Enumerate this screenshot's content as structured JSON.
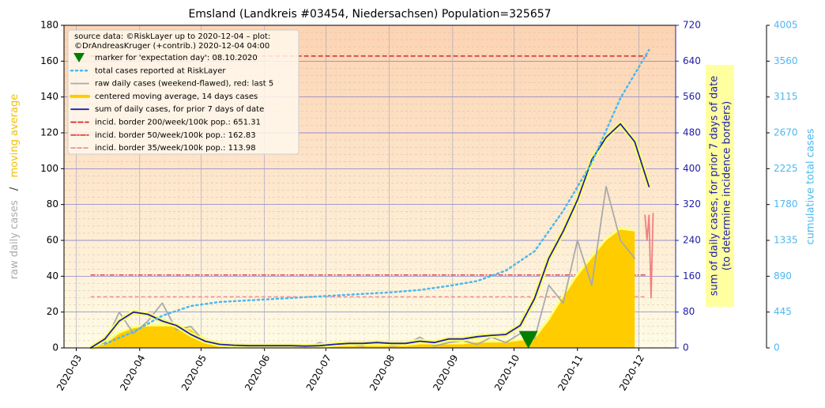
{
  "chart_data": {
    "type": "line",
    "title": "Emsland (Landkreis #03454, Niedersachsen) Population=325657",
    "legend_title": [
      "source data: ©RiskLayer up to 2020-12-04 – plot:",
      "©DrAndreasKruger (+contrib.) 2020-12-04 04:00"
    ],
    "ylabel": [
      "raw daily cases",
      "/",
      "moving average"
    ],
    "y2label": [
      "sum of daily cases, for prior 7 days of date",
      "(to determine incidence borders)"
    ],
    "y3label": "cumulative total cases",
    "xlim": [
      -6,
      293
    ],
    "xticks": [
      {
        "value": 0,
        "label": "2020-03"
      },
      {
        "value": 31,
        "label": "2020-04"
      },
      {
        "value": 61,
        "label": "2020-05"
      },
      {
        "value": 92,
        "label": "2020-06"
      },
      {
        "value": 122,
        "label": "2020-07"
      },
      {
        "value": 153,
        "label": "2020-08"
      },
      {
        "value": 184,
        "label": "2020-09"
      },
      {
        "value": 214,
        "label": "2020-10"
      },
      {
        "value": 245,
        "label": "2020-11"
      },
      {
        "value": 275,
        "label": "2020-12"
      }
    ],
    "ylim": [
      0,
      180
    ],
    "yticks": [
      0,
      20,
      40,
      60,
      80,
      100,
      120,
      140,
      160,
      180
    ],
    "y2lim": [
      0,
      720
    ],
    "y2ticks": [
      0,
      80,
      160,
      240,
      320,
      400,
      480,
      560,
      640,
      720
    ],
    "y3lim": [
      0,
      4005
    ],
    "y3ticks": [
      0,
      445,
      890,
      1335,
      1780,
      2225,
      2670,
      3115,
      3560,
      4005
    ],
    "grid": true,
    "marker": {
      "label": "marker for 'expectation day': 08.10.2020",
      "color": "#008000",
      "x": 221,
      "y": 5
    },
    "series": [
      {
        "name": "total cases reported at RiskLayer",
        "color": "#4db8f0",
        "style": "dotted",
        "axis": "y3",
        "x": [
          14,
          28,
          42,
          56,
          70,
          84,
          98,
          112,
          126,
          140,
          154,
          168,
          182,
          196,
          210,
          224,
          238,
          252,
          266,
          280
        ],
        "values": [
          50,
          200,
          400,
          520,
          570,
          590,
          610,
          630,
          650,
          670,
          690,
          720,
          770,
          830,
          960,
          1200,
          1700,
          2300,
          3100,
          3700
        ]
      },
      {
        "name": "raw daily cases (weekend-flawed), red: last 5",
        "color": "#aaaaaa",
        "style": "solid",
        "axis": "y",
        "x": [
          7,
          14,
          21,
          28,
          35,
          42,
          49,
          56,
          63,
          70,
          77,
          84,
          91,
          98,
          105,
          112,
          119,
          126,
          133,
          140,
          147,
          154,
          161,
          168,
          175,
          182,
          189,
          196,
          203,
          210,
          217,
          224,
          231,
          238,
          245,
          252,
          259,
          266,
          273
        ],
        "values": [
          0,
          3,
          20,
          8,
          15,
          25,
          10,
          12,
          3,
          2,
          1,
          2,
          0,
          1,
          1,
          0,
          3,
          1,
          2,
          1,
          4,
          1,
          2,
          6,
          1,
          3,
          4,
          2,
          6,
          3,
          8,
          5,
          35,
          25,
          60,
          35,
          90,
          60,
          50
        ]
      },
      {
        "color": "#f08080",
        "style": "solid",
        "axis": "y",
        "x": [
          278,
          279,
          280,
          281,
          282
        ],
        "values": [
          74,
          60,
          74,
          28,
          75
        ]
      },
      {
        "name": "centered moving average, 14 days cases",
        "color": "#ffcc00",
        "style": "area",
        "axis": "y",
        "x": [
          7,
          14,
          21,
          28,
          35,
          42,
          49,
          56,
          63,
          70,
          77,
          84,
          91,
          98,
          105,
          112,
          119,
          126,
          133,
          140,
          147,
          154,
          161,
          168,
          175,
          182,
          189,
          196,
          203,
          210,
          217,
          224,
          231,
          238,
          245,
          252,
          259,
          266,
          273
        ],
        "values": [
          0,
          2,
          8,
          11,
          12,
          12,
          12,
          10,
          4,
          2,
          1,
          1,
          1,
          1,
          1,
          1,
          1,
          1,
          1,
          1,
          1,
          1,
          1,
          2,
          2,
          2,
          2,
          3,
          3,
          3,
          4,
          5,
          15,
          28,
          40,
          50,
          60,
          66,
          65
        ]
      },
      {
        "name": "sum of daily cases, for prior 7 days of date",
        "color": "#2020a8",
        "style": "solid",
        "axis": "y2",
        "x": [
          7,
          14,
          21,
          28,
          35,
          42,
          49,
          56,
          63,
          70,
          77,
          84,
          91,
          98,
          105,
          112,
          119,
          126,
          133,
          140,
          147,
          154,
          161,
          168,
          175,
          182,
          189,
          196,
          203,
          210,
          217,
          224,
          231,
          238,
          245,
          252,
          259,
          266,
          273,
          280
        ],
        "values": [
          0,
          20,
          60,
          80,
          75,
          60,
          50,
          30,
          15,
          8,
          6,
          5,
          5,
          5,
          5,
          4,
          5,
          8,
          10,
          10,
          12,
          10,
          10,
          15,
          12,
          20,
          20,
          25,
          28,
          30,
          50,
          110,
          200,
          260,
          330,
          420,
          470,
          500,
          460,
          360
        ]
      }
    ],
    "borders_x": [
      7,
      279
    ],
    "borders": [
      {
        "name": "incid. border 200/week/100k pop.: 651.31",
        "value": 651.31,
        "color": "#d62728",
        "dash": "6,3",
        "axis": "y2"
      },
      {
        "name": "incid. border 50/week/100k pop.: 162.83",
        "value": 162.83,
        "color": "#e04848",
        "dash": "6,2,2,2",
        "axis": "y2"
      },
      {
        "name": "incid. border 35/week/100k pop.: 113.98",
        "value": 113.98,
        "color": "#f09090",
        "dash": "5,3",
        "axis": "y2"
      }
    ]
  }
}
